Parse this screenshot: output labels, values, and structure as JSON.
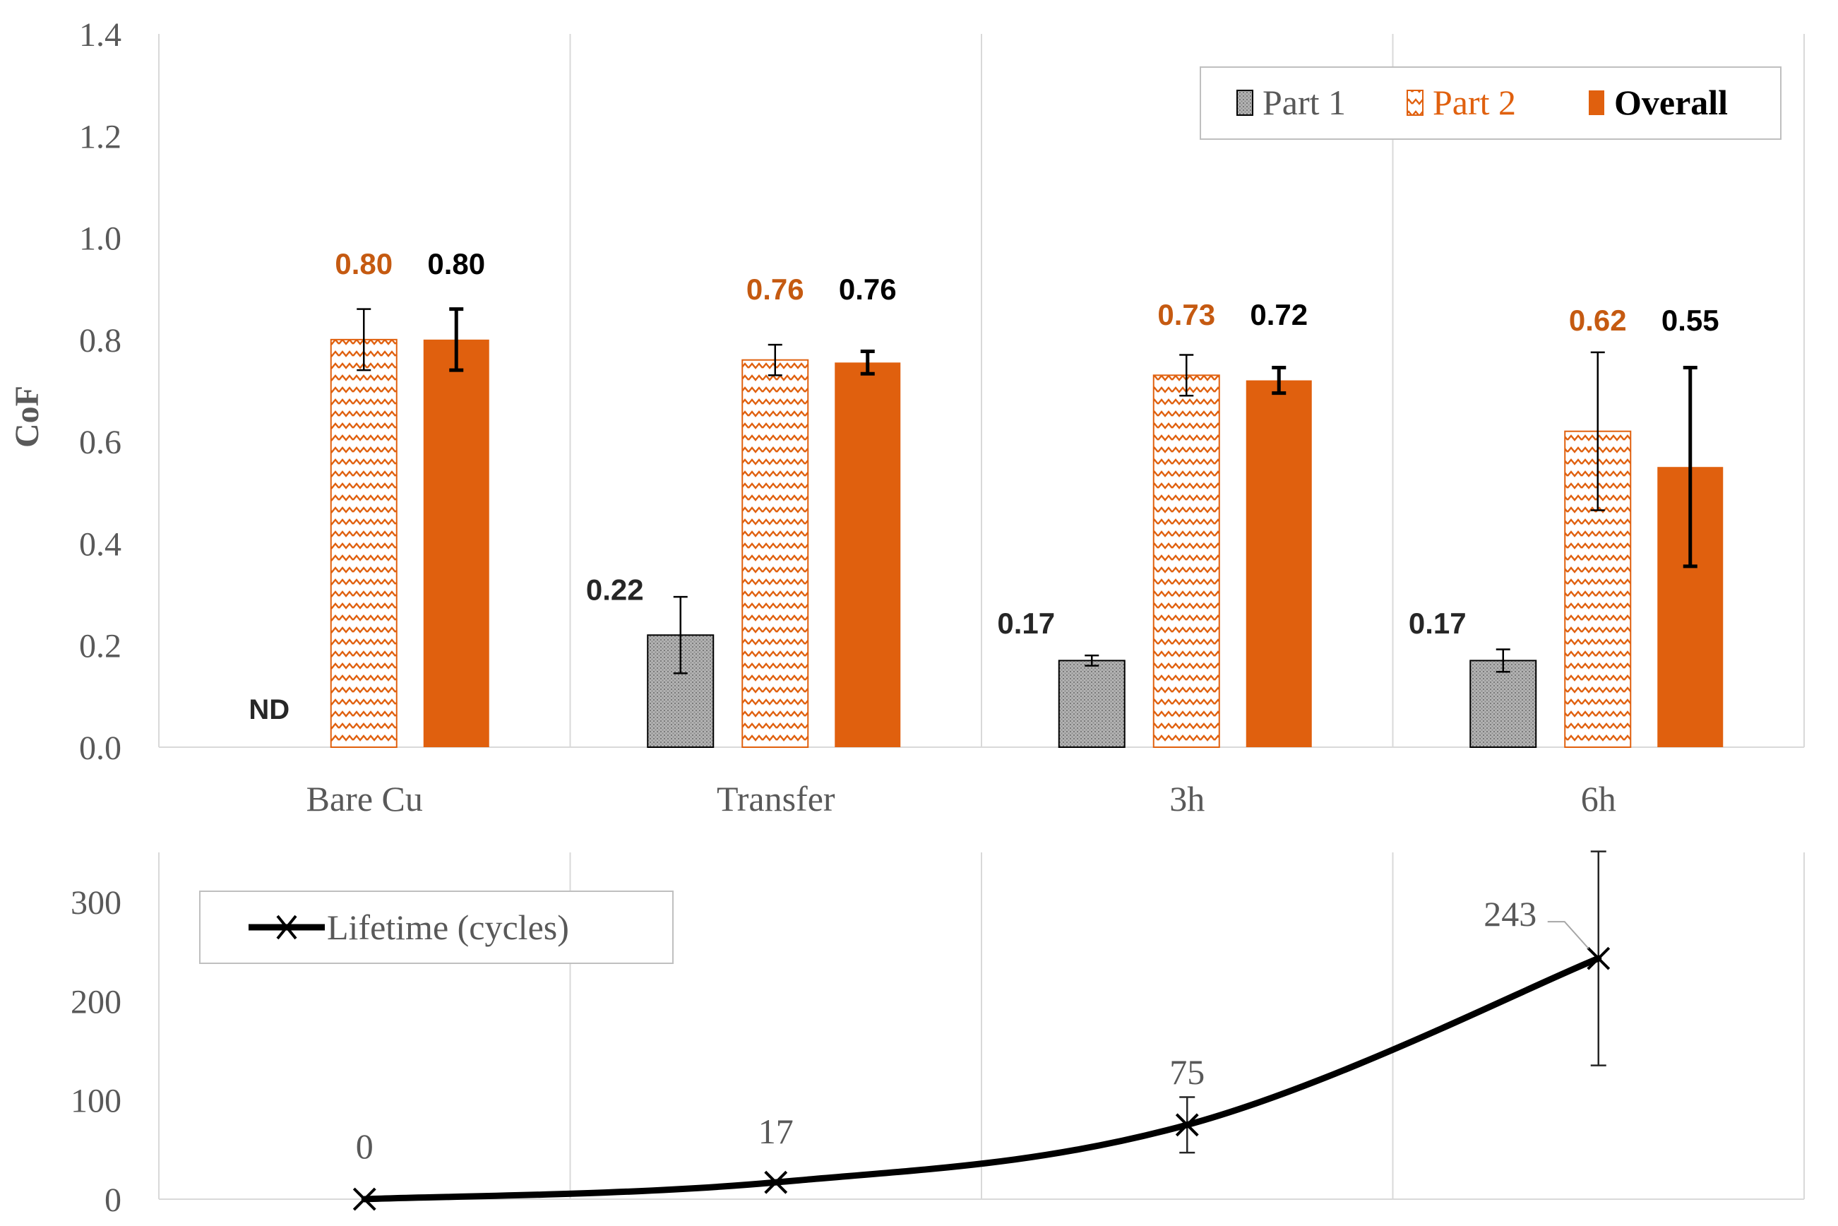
{
  "colors": {
    "part1_fill": "#a6a6a6",
    "part2_stroke": "#e0600e",
    "overall_fill": "#e0600e",
    "part2_label": "#c55a11",
    "grid": "#d9d9d9",
    "axis_text": "#595959",
    "line": "#000000"
  },
  "chart_data": [
    {
      "type": "bar",
      "ylabel": "CoF",
      "ylim": [
        0,
        1.4
      ],
      "yticks": [
        "0.0",
        "0.2",
        "0.4",
        "0.6",
        "0.8",
        "1.0",
        "1.2",
        "1.4"
      ],
      "categories": [
        "Bare Cu",
        "Transfer",
        "3h",
        "6h"
      ],
      "legend_position": "top-right",
      "series": [
        {
          "name": "Part 1",
          "values": [
            null,
            0.22,
            0.17,
            0.17
          ],
          "errors": [
            null,
            0.075,
            0.01,
            0.022
          ],
          "labels": [
            "ND",
            "0.22",
            "0.17",
            "0.17"
          ]
        },
        {
          "name": "Part 2",
          "values": [
            0.8,
            0.76,
            0.73,
            0.62
          ],
          "errors": [
            0.06,
            0.03,
            0.04,
            0.155
          ],
          "labels": [
            "0.80",
            "0.76",
            "0.73",
            "0.62"
          ]
        },
        {
          "name": "Overall",
          "values": [
            0.8,
            0.755,
            0.72,
            0.55
          ],
          "errors": [
            0.06,
            0.022,
            0.025,
            0.195
          ],
          "labels": [
            "0.80",
            "0.76",
            "0.72",
            "0.55"
          ]
        }
      ]
    },
    {
      "type": "line",
      "ylim": [
        0,
        350
      ],
      "yticks": [
        "0",
        "100",
        "200",
        "300"
      ],
      "categories": [
        "Bare Cu",
        "Transfer",
        "3h",
        "6h"
      ],
      "legend_position": "top-left",
      "series": [
        {
          "name": "Lifetime (cycles)",
          "values": [
            0,
            17,
            75,
            243
          ],
          "errors": [
            0,
            0,
            28,
            108
          ],
          "labels": [
            "0",
            "17",
            "75",
            "243"
          ]
        }
      ]
    }
  ]
}
